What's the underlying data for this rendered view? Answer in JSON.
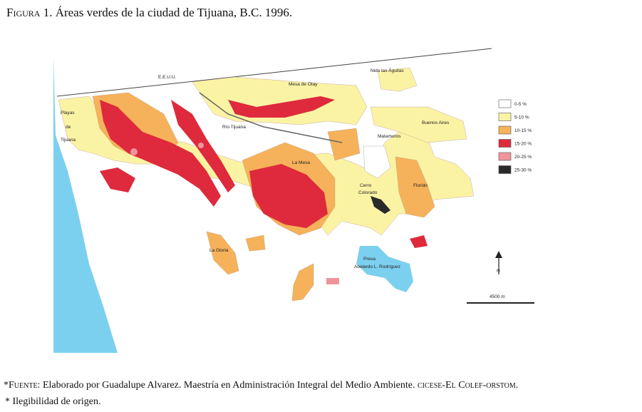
{
  "caption": {
    "number": "Figura 1.",
    "text": "Áreas verdes de la ciudad de Tijuana, B.C. 1996."
  },
  "map": {
    "labels": {
      "usa": "E.E.U.U.",
      "otay": "Mesa de Otay",
      "nido": "Nido las Águilas",
      "playas1": "Playas",
      "playas2": "de",
      "playas3": "Tijuana",
      "rio": "Río Tijuana",
      "matamoros": "Matamoros",
      "buenos": "Buenos Aires",
      "mesa": "La Mesa",
      "cerro1": "Cerro",
      "cerro2": "Colorado",
      "florido": "Florido",
      "gloria": "La Gloria",
      "presa1": "Presa",
      "presa2": "Abelardo L. Rodríguez",
      "north": "N",
      "scale": "4500 m"
    },
    "legend": [
      {
        "label": "0-5 %",
        "color": "#ffffff"
      },
      {
        "label": "5-10 %",
        "color": "#fbf3a4"
      },
      {
        "label": "10-15 %",
        "color": "#f6b25a"
      },
      {
        "label": "15-20 %",
        "color": "#de2a3c"
      },
      {
        "label": "20-25 %",
        "color": "#f0949c"
      },
      {
        "label": "25-30 %",
        "color": "#2a2a2a"
      }
    ]
  },
  "footer": {
    "source_label": "*Fuente:",
    "source_text": "Elaborado por Guadalupe Alvarez. Maestría en Administración Integral del Medio Ambiente.",
    "institutions": "cicese-El Colef-orstom.",
    "note": "* Ilegibilidad de origen."
  }
}
